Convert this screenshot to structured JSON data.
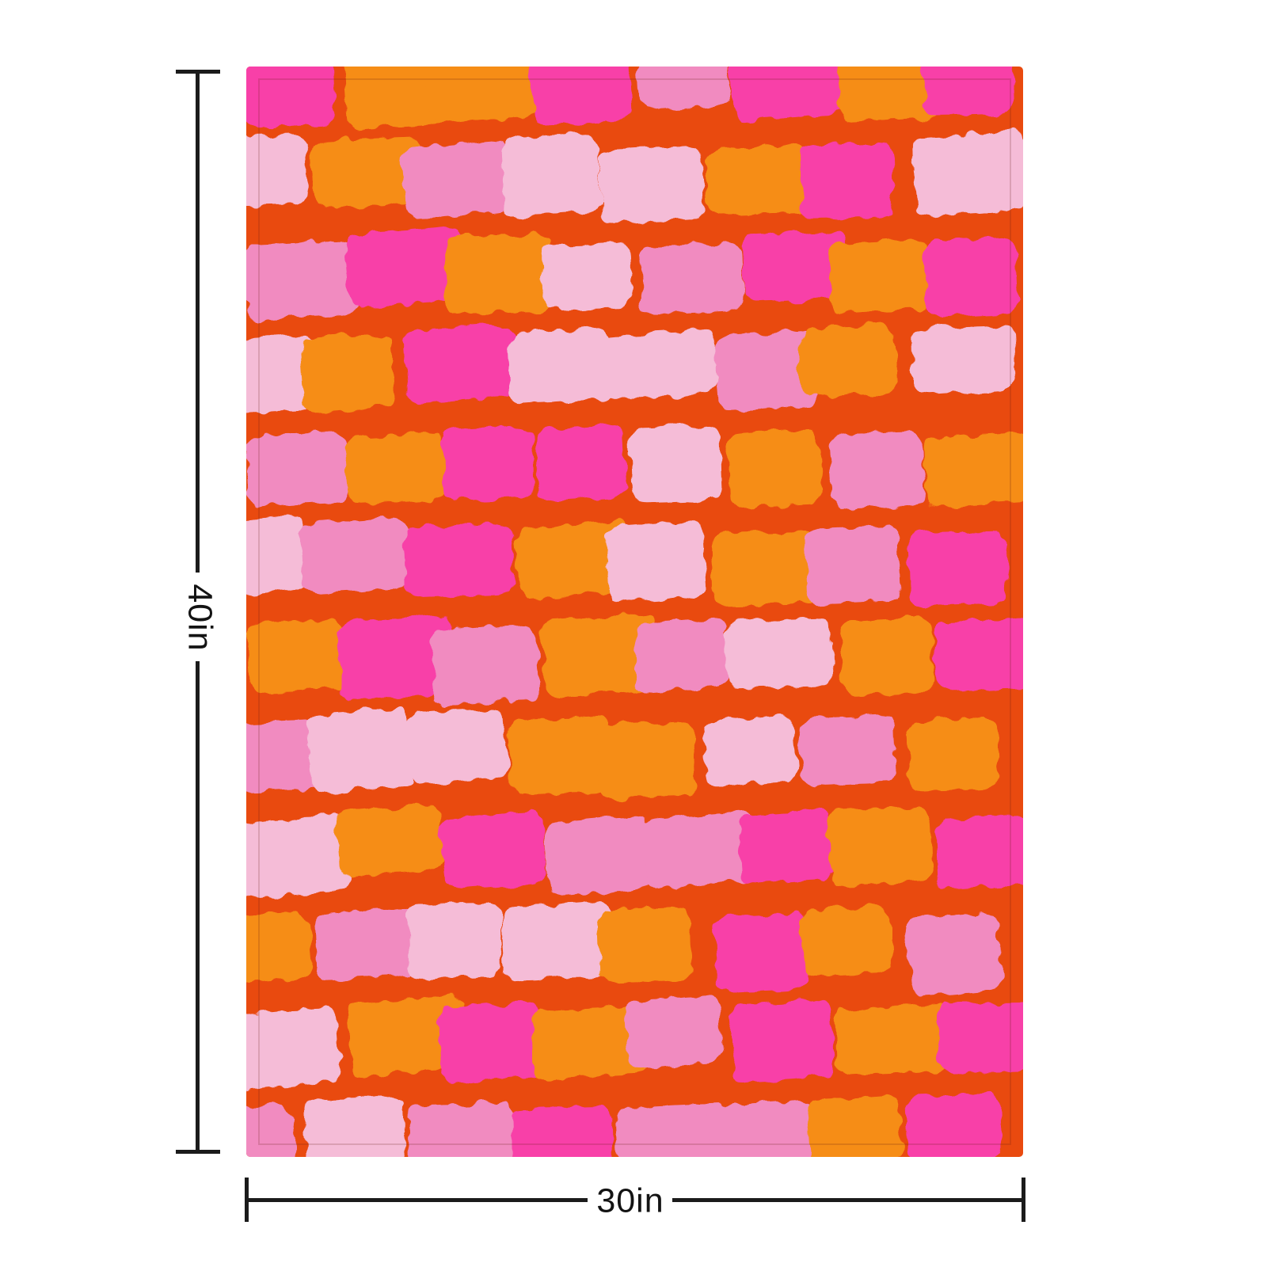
{
  "page": {
    "background": "#ffffff",
    "description": "Product size preview: abstract pink and orange brushstroke blanket with dimension annotations"
  },
  "dimensions": {
    "height_label": "40in",
    "width_label": "30in",
    "line_color": "#1b1b1b",
    "label_color": "#131313"
  },
  "blanket": {
    "background": "#E94A0F",
    "palette": {
      "O": "#F68D18",
      "M": "#F83FA8",
      "P": "#F18BC0",
      "L": "#F5BCD7"
    },
    "hem_line_color": "rgba(100,25,15,0.18)",
    "pattern_rows": [
      "M O O M P M O M",
      "L O P L L O M L",
      "P M O L P M O M",
      "L O M L L P O L",
      "P O M M L O P O",
      "L P M O L O P M",
      "O M P O P L O M",
      "P L L O O L P O",
      "L O M P P M O M",
      "O P L L O M O P",
      "L O M O P M O M",
      "P L P M P P O M"
    ]
  }
}
